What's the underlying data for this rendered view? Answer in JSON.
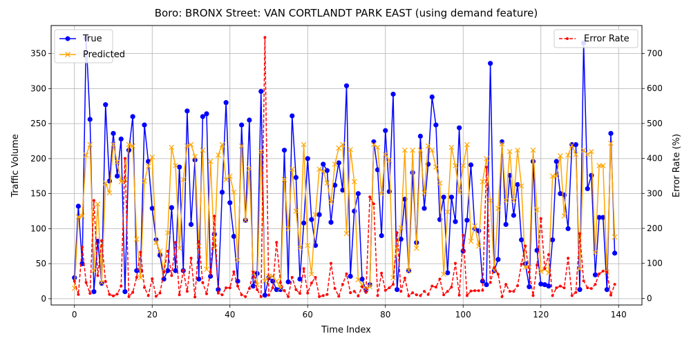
{
  "chart_data": {
    "type": "line",
    "title": "Boro: BRONX Street: VAN CORTLANDT PARK EAST (using demand feature)",
    "xlabel": "Time Index",
    "ylabel_left": "Traffic Volume",
    "ylabel_right": "Error Rate (%)",
    "xlim": [
      -6,
      146
    ],
    "ylim_left": [
      -9,
      390
    ],
    "ylim_right": [
      -19,
      780
    ],
    "x_ticks": [
      0,
      20,
      40,
      60,
      80,
      100,
      120,
      140
    ],
    "y_ticks_left": [
      0,
      50,
      100,
      150,
      200,
      250,
      300,
      350
    ],
    "y_ticks_right": [
      0,
      100,
      200,
      300,
      400,
      500,
      600,
      700
    ],
    "grid": true,
    "legend_left_position": "top-left",
    "legend_right_position": "top-right",
    "colors": {
      "true": "#0000ff",
      "predicted": "#ffa500",
      "error": "#ff0000",
      "grid": "#b0b0b0"
    },
    "series": [
      {
        "name": "True",
        "axis": "left",
        "style": "solid-circle",
        "values": [
          30,
          132,
          50,
          372,
          256,
          10,
          82,
          22,
          277,
          168,
          236,
          175,
          228,
          10,
          212,
          260,
          40,
          40,
          248,
          196,
          129,
          84,
          62,
          28,
          40,
          130,
          40,
          188,
          40,
          268,
          106,
          198,
          28,
          260,
          264,
          32,
          92,
          13,
          152,
          280,
          137,
          89,
          25,
          248,
          112,
          255,
          18,
          36,
          296,
          5,
          30,
          25,
          13,
          13,
          212,
          24,
          261,
          173,
          28,
          108,
          200,
          113,
          76,
          120,
          192,
          183,
          109,
          162,
          194,
          155,
          304,
          32,
          125,
          150,
          28,
          12,
          20,
          224,
          184,
          90,
          240,
          153,
          292,
          13,
          85,
          142,
          40,
          180,
          80,
          232,
          129,
          192,
          288,
          248,
          113,
          145,
          37,
          145,
          110,
          244,
          68,
          112,
          191,
          100,
          97,
          25,
          20,
          336,
          40,
          56,
          224,
          106,
          176,
          119,
          163,
          84,
          50,
          17,
          196,
          69,
          21,
          20,
          18,
          84,
          196,
          150,
          148,
          100,
          220,
          220,
          13,
          365,
          157,
          176,
          34,
          116,
          116,
          13,
          236,
          65
        ]
      },
      {
        "name": "Predicted",
        "axis": "left",
        "style": "solid-x",
        "values": [
          15,
          117,
          118,
          205,
          220,
          40,
          135,
          23,
          165,
          151,
          220,
          195,
          167,
          170,
          220,
          218,
          85,
          30,
          168,
          189,
          202,
          80,
          68,
          38,
          94,
          216,
          190,
          72,
          170,
          218,
          220,
          203,
          75,
          212,
          42,
          196,
          73,
          205,
          220,
          170,
          175,
          152,
          55,
          218,
          112,
          186,
          37,
          20,
          210,
          25,
          32,
          32,
          25,
          15,
          170,
          100,
          185,
          125,
          73,
          220,
          76,
          35,
          120,
          185,
          182,
          165,
          138,
          192,
          215,
          220,
          93,
          213,
          167,
          27,
          20,
          14,
          17,
          220,
          216,
          150,
          206,
          198,
          30,
          73,
          101,
          212,
          40,
          212,
          72,
          212,
          151,
          218,
          212,
          188,
          165,
          35,
          124,
          216,
          190,
          152,
          190,
          220,
          82,
          104,
          75,
          167,
          200,
          140,
          40,
          129,
          221,
          140,
          210,
          140,
          212,
          161,
          45,
          45,
          212,
          127,
          39,
          42,
          37,
          175,
          175,
          204,
          118,
          205,
          219,
          206,
          42,
          212,
          206,
          210,
          66,
          190,
          190,
          38,
          222,
          88
        ]
      },
      {
        "name": "Error Rate",
        "axis": "right",
        "style": "dashed-dot",
        "values": [
          49,
          11,
          147,
          45,
          14,
          280,
          65,
          165,
          48,
          11,
          7,
          12,
          35,
          400,
          5,
          17,
          60,
          132,
          31,
          8,
          56,
          6,
          15,
          75,
          135,
          65,
          160,
          10,
          80,
          20,
          115,
          4,
          162,
          45,
          13,
          75,
          235,
          15,
          10,
          30,
          30,
          76,
          35,
          10,
          5,
          28,
          75,
          25,
          5,
          746,
          9,
          30,
          160,
          45,
          22,
          5,
          60,
          25,
          14,
          85,
          15,
          44,
          60,
          5,
          8,
          11,
          100,
          28,
          6,
          40,
          70,
          16,
          20,
          7,
          33,
          17,
          290,
          270,
          8,
          72,
          23,
          30,
          40,
          188,
          20,
          58,
          7,
          16,
          10,
          8,
          20,
          11,
          35,
          32,
          55,
          10,
          20,
          32,
          100,
          9,
          180,
          8,
          21,
          22,
          22,
          23,
          375,
          45,
          88,
          69,
          5,
          40,
          20,
          20,
          36,
          98,
          150,
          75,
          8,
          95,
          228,
          85,
          125,
          8,
          30,
          35,
          30,
          115,
          8,
          17,
          185,
          50,
          30,
          28,
          40,
          70,
          78,
          75,
          9,
          40
        ]
      }
    ]
  }
}
